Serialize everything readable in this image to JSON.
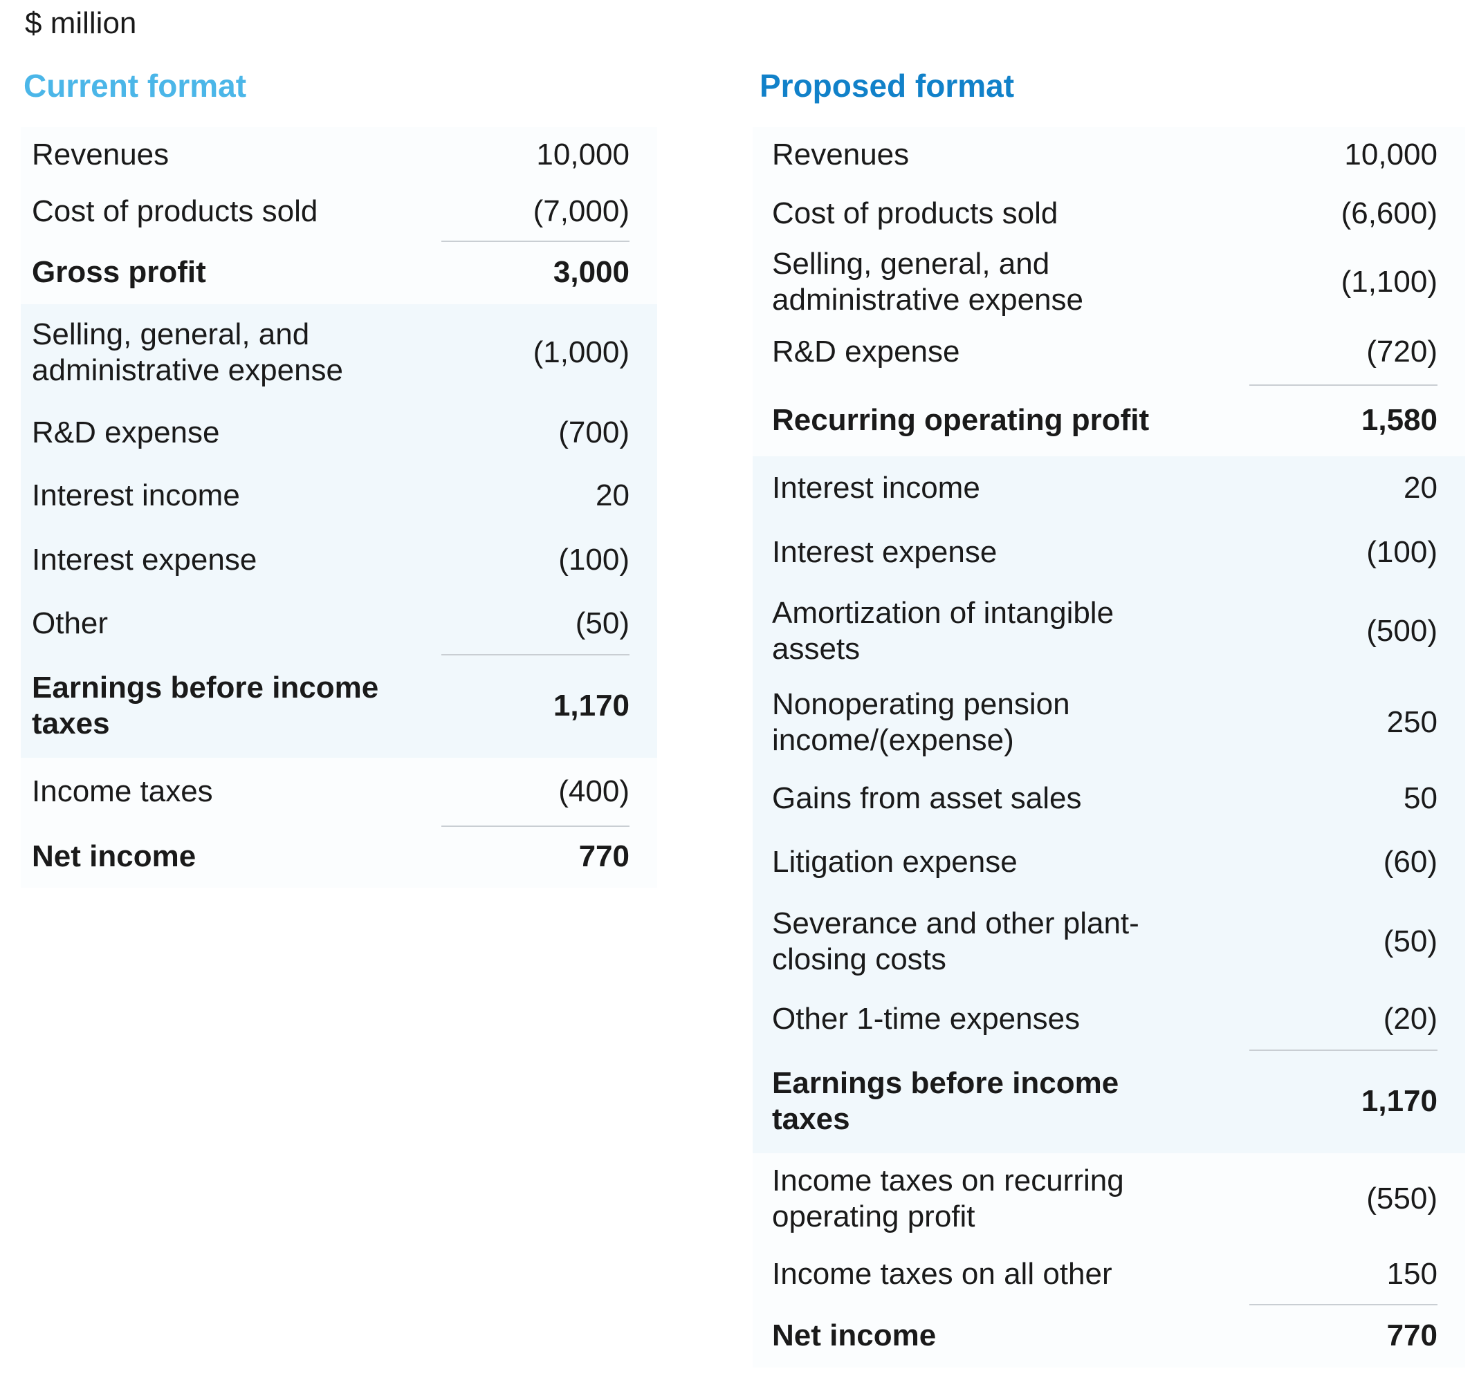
{
  "unit": "$ million",
  "colors": {
    "current_title": "#4bb6e8",
    "proposed_title": "#1181c9",
    "band": "#f1f8fc"
  },
  "current": {
    "title": "Current format",
    "rows": [
      {
        "label": "Revenues",
        "value": "10,000"
      },
      {
        "label": "Cost of products sold",
        "value": "(7,000)"
      },
      {
        "label": "Gross profit",
        "value": "3,000"
      },
      {
        "label": "Selling, general, and administrative expense",
        "value": "(1,000)"
      },
      {
        "label": "R&D expense",
        "value": "(700)"
      },
      {
        "label": "Interest income",
        "value": "20"
      },
      {
        "label": "Interest expense",
        "value": "(100)"
      },
      {
        "label": "Other",
        "value": "(50)"
      },
      {
        "label": "Earnings before income taxes",
        "value": "1,170"
      },
      {
        "label": "Income taxes",
        "value": "(400)"
      },
      {
        "label": "Net income",
        "value": "770"
      }
    ]
  },
  "proposed": {
    "title": "Proposed format",
    "rows": [
      {
        "label": "Revenues",
        "value": "10,000"
      },
      {
        "label": "Cost of products sold",
        "value": "(6,600)"
      },
      {
        "label": "Selling, general, and administrative expense",
        "value": "(1,100)"
      },
      {
        "label": "R&D expense",
        "value": "(720)"
      },
      {
        "label": "Recurring operating profit",
        "value": "1,580"
      },
      {
        "label": "Interest income",
        "value": "20"
      },
      {
        "label": "Interest expense",
        "value": "(100)"
      },
      {
        "label": "Amortization of intangible assets",
        "value": "(500)"
      },
      {
        "label": "Nonoperating pension income/(expense)",
        "value": "250"
      },
      {
        "label": "Gains from asset sales",
        "value": "50"
      },
      {
        "label": "Litigation expense",
        "value": "(60)"
      },
      {
        "label": "Severance and other plant-closing costs",
        "value": "(50)"
      },
      {
        "label": "Other 1-time expenses",
        "value": "(20)"
      },
      {
        "label": "Earnings before income taxes",
        "value": "1,170"
      },
      {
        "label": "Income taxes on recurring operating profit",
        "value": "(550)"
      },
      {
        "label": "Income taxes on all other",
        "value": "150"
      },
      {
        "label": "Net income",
        "value": "770"
      }
    ]
  }
}
